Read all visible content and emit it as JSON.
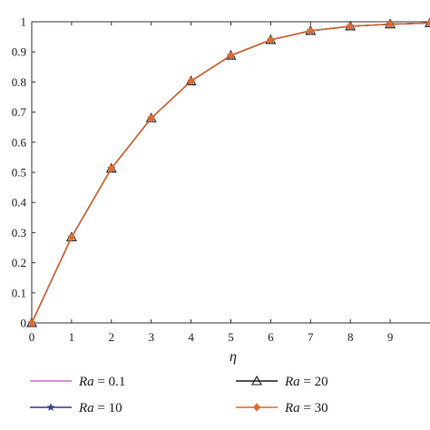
{
  "chart_data": {
    "type": "line",
    "xlabel": "η",
    "ylabel": "",
    "xlim": [
      0,
      10
    ],
    "ylim": [
      0,
      1
    ],
    "x_ticks": [
      "0",
      "1",
      "2",
      "3",
      "4",
      "5",
      "6",
      "7",
      "8",
      "9"
    ],
    "y_ticks": [
      "0",
      "0.1",
      "0.2",
      "0.3",
      "0.4",
      "0.5",
      "0.6",
      "0.7",
      "0.8",
      "0.9",
      "1"
    ],
    "x": [
      0,
      1,
      2,
      3,
      4,
      5,
      6,
      7,
      8,
      9,
      10
    ],
    "grid": false,
    "legend_position": "bottom",
    "series": [
      {
        "name": "0.1",
        "legend_var": "Ra",
        "legend_eq": " = ",
        "marker": "none",
        "color": "#c86fc8",
        "values": [
          0,
          0.285,
          0.513,
          0.68,
          0.803,
          0.888,
          0.94,
          0.97,
          0.985,
          0.992,
          0.996
        ]
      },
      {
        "name": "10",
        "legend_var": "Ra",
        "legend_eq": " = ",
        "marker": "star",
        "color": "#3c3c8c",
        "values": [
          0,
          0.285,
          0.513,
          0.68,
          0.803,
          0.888,
          0.94,
          0.97,
          0.985,
          0.992,
          0.996
        ]
      },
      {
        "name": "20",
        "legend_var": "Ra",
        "legend_eq": " = ",
        "marker": "triangle",
        "color": "#1a1a1a",
        "values": [
          0,
          0.285,
          0.513,
          0.68,
          0.803,
          0.888,
          0.94,
          0.97,
          0.985,
          0.992,
          0.996
        ]
      },
      {
        "name": "30",
        "legend_var": "Ra",
        "legend_eq": " = ",
        "marker": "diamond",
        "color": "#e06a2c",
        "values": [
          0,
          0.285,
          0.513,
          0.68,
          0.803,
          0.888,
          0.94,
          0.97,
          0.985,
          0.992,
          0.996
        ]
      }
    ]
  }
}
